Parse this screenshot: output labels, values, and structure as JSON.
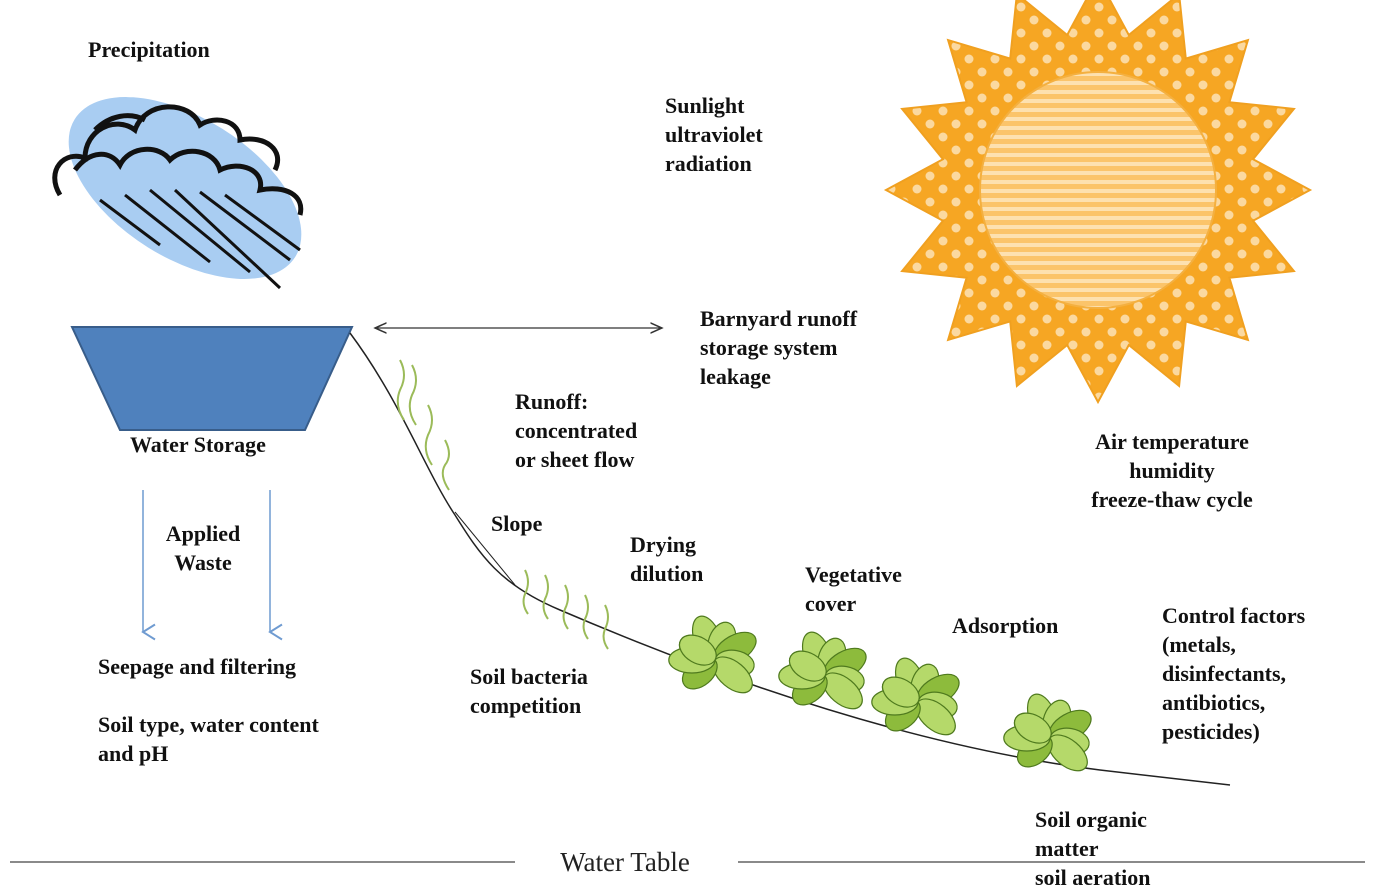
{
  "labels": [
    {
      "lines": [
        "Precipitation"
      ]
    },
    {
      "lines": [
        "Sunlight",
        "ultraviolet",
        "radiation"
      ]
    },
    {
      "lines": [
        "Barnyard runoff",
        "storage system",
        "leakage"
      ]
    },
    {
      "lines": [
        "Runoff:",
        "concentrated",
        "or sheet flow"
      ]
    },
    {
      "lines": [
        "Air temperature",
        "humidity",
        "freeze-thaw cycle"
      ]
    },
    {
      "lines": [
        "Water Storage"
      ]
    },
    {
      "lines": [
        "Applied",
        "Waste"
      ]
    },
    {
      "lines": [
        "Slope"
      ]
    },
    {
      "lines": [
        "Drying",
        "dilution"
      ]
    },
    {
      "lines": [
        "Vegetative",
        "cover"
      ]
    },
    {
      "lines": [
        "Adsorption"
      ]
    },
    {
      "lines": [
        "Control factors",
        "(metals,",
        "disinfectants,",
        "antibiotics,",
        "pesticides)"
      ]
    },
    {
      "lines": [
        "Seepage and filtering"
      ]
    },
    {
      "lines": [
        "Soil type, water content",
        "and pH"
      ]
    },
    {
      "lines": [
        "Soil bacteria",
        "competition"
      ]
    },
    {
      "lines": [
        "Soil organic",
        "matter",
        "soil aeration"
      ]
    }
  ],
  "water_table": "Water Table"
}
